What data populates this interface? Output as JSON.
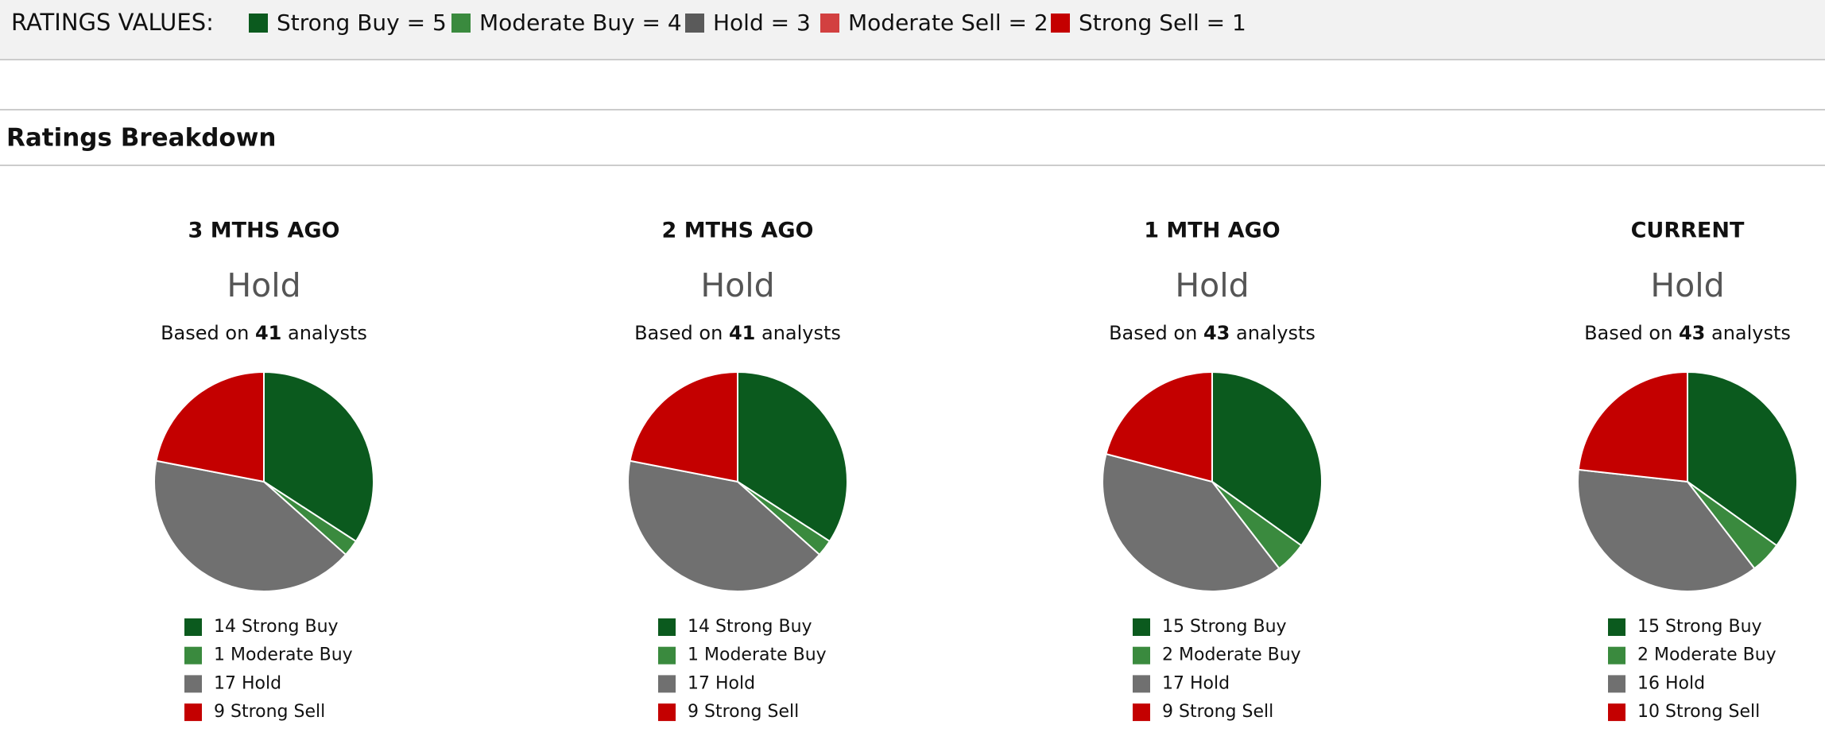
{
  "legend_bar": {
    "title": "RATINGS VALUES:",
    "items": [
      {
        "label": "Strong Buy = 5",
        "color": "#0b5a1e"
      },
      {
        "label": "Moderate Buy = 4",
        "color": "#3a8a3e"
      },
      {
        "label": "Hold = 3",
        "color": "#5a5a5a"
      },
      {
        "label": "Moderate Sell = 2",
        "color": "#d24040"
      },
      {
        "label": "Strong Sell = 1",
        "color": "#c40000"
      }
    ]
  },
  "section_title": "Ratings Breakdown",
  "panels": [
    {
      "title": "3 MTHS AGO",
      "consensus": "Hold",
      "based_on": "Based on",
      "analysts": 41,
      "analysts_suffix": "analysts",
      "slices": [
        {
          "count": 14,
          "name": "Strong Buy",
          "color": "#0b5a1e"
        },
        {
          "count": 1,
          "name": "Moderate Buy",
          "color": "#3a8a3e"
        },
        {
          "count": 17,
          "name": "Hold",
          "color": "#707070"
        },
        {
          "count": 9,
          "name": "Strong Sell",
          "color": "#c40000"
        }
      ]
    },
    {
      "title": "2 MTHS AGO",
      "consensus": "Hold",
      "based_on": "Based on",
      "analysts": 41,
      "analysts_suffix": "analysts",
      "slices": [
        {
          "count": 14,
          "name": "Strong Buy",
          "color": "#0b5a1e"
        },
        {
          "count": 1,
          "name": "Moderate Buy",
          "color": "#3a8a3e"
        },
        {
          "count": 17,
          "name": "Hold",
          "color": "#707070"
        },
        {
          "count": 9,
          "name": "Strong Sell",
          "color": "#c40000"
        }
      ]
    },
    {
      "title": "1 MTH AGO",
      "consensus": "Hold",
      "based_on": "Based on",
      "analysts": 43,
      "analysts_suffix": "analysts",
      "slices": [
        {
          "count": 15,
          "name": "Strong Buy",
          "color": "#0b5a1e"
        },
        {
          "count": 2,
          "name": "Moderate Buy",
          "color": "#3a8a3e"
        },
        {
          "count": 17,
          "name": "Hold",
          "color": "#707070"
        },
        {
          "count": 9,
          "name": "Strong Sell",
          "color": "#c40000"
        }
      ]
    },
    {
      "title": "CURRENT",
      "consensus": "Hold",
      "based_on": "Based on",
      "analysts": 43,
      "analysts_suffix": "analysts",
      "slices": [
        {
          "count": 15,
          "name": "Strong Buy",
          "color": "#0b5a1e"
        },
        {
          "count": 2,
          "name": "Moderate Buy",
          "color": "#3a8a3e"
        },
        {
          "count": 16,
          "name": "Hold",
          "color": "#707070"
        },
        {
          "count": 10,
          "name": "Strong Sell",
          "color": "#c40000"
        }
      ]
    }
  ]
}
